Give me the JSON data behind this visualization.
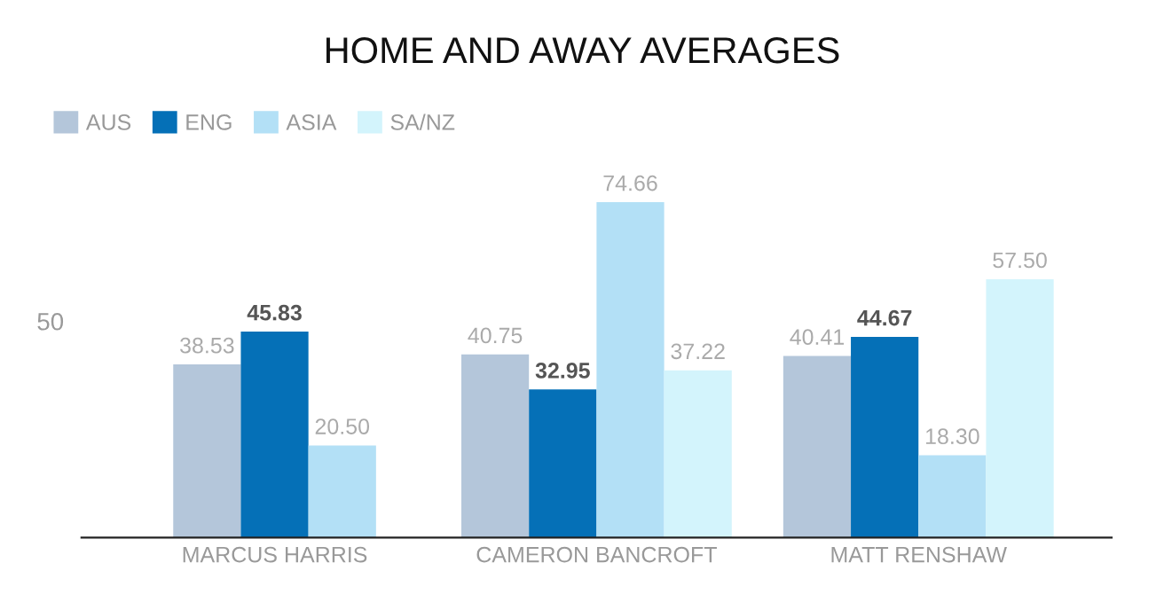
{
  "chart_data": {
    "type": "bar",
    "title": "HOME AND AWAY AVERAGES",
    "categories": [
      "MARCUS HARRIS",
      "CAMERON BANCROFT",
      "MATT RENSHAW"
    ],
    "series": [
      {
        "name": "AUS",
        "color": "#b4c6da",
        "values": [
          38.53,
          40.75,
          40.41
        ],
        "value_labels": [
          "38.53",
          "40.75",
          "40.41"
        ]
      },
      {
        "name": "ENG",
        "color": "#0570b7",
        "values": [
          45.83,
          32.95,
          44.67
        ],
        "value_labels": [
          "45.83",
          "32.95",
          "44.67"
        ]
      },
      {
        "name": "ASIA",
        "color": "#b3e0f6",
        "values": [
          20.5,
          74.66,
          18.3
        ],
        "value_labels": [
          "20.50",
          "74.66",
          "18.30"
        ]
      },
      {
        "name": "SA/NZ",
        "color": "#d3f4fc",
        "values": [
          null,
          37.22,
          57.5
        ],
        "value_labels": [
          null,
          "37.22",
          "57.50"
        ]
      }
    ],
    "annotations": [
      "50"
    ],
    "grid": false,
    "legend": "top left"
  }
}
